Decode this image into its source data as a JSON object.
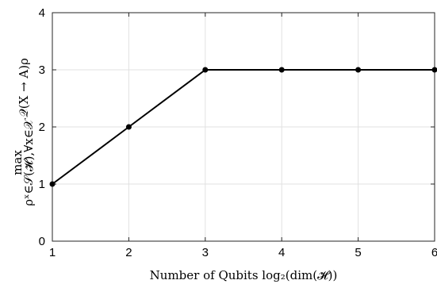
{
  "chart_data": {
    "type": "line",
    "x": [
      1,
      2,
      3,
      4,
      5,
      6
    ],
    "series": [
      {
        "values": [
          1,
          2,
          3,
          3,
          3,
          3
        ]
      }
    ],
    "xticks": [
      1,
      2,
      3,
      4,
      5,
      6
    ],
    "yticks": [
      0,
      1,
      2,
      3,
      4
    ],
    "xlim": [
      1,
      6
    ],
    "ylim": [
      0,
      4
    ],
    "xlabel": "Number of Qubits log₂(dim(𝓗))",
    "ylabel_main": "𝒬(X → A)ρ",
    "ylabel_max": "max",
    "ylabel_sub": "ρˣ∈𝒮(𝓗),∀x∈𝒳",
    "grid": true,
    "colors": {
      "line": "#000000",
      "grid": "#e1e1e1",
      "axis": "#262626"
    }
  }
}
